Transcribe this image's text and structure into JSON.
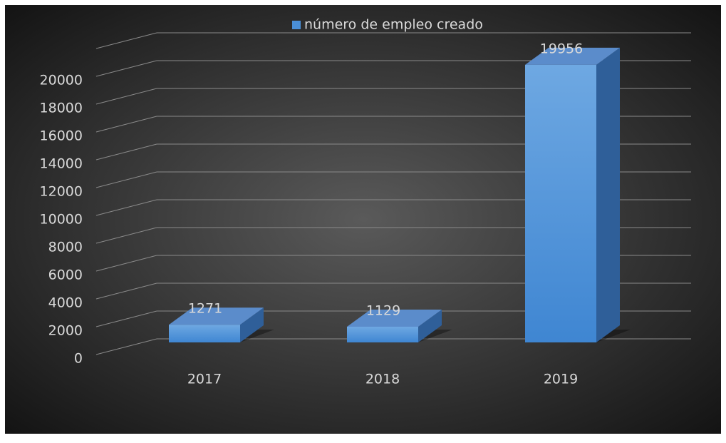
{
  "chart_data": {
    "type": "bar3d",
    "series": [
      {
        "name": "número de empleo creado",
        "color": "#4a8fd8",
        "values": [
          1271,
          1129,
          19956
        ]
      }
    ],
    "categories": [
      "2017",
      "2018",
      "2019"
    ],
    "ylim": [
      0,
      22000
    ],
    "yticks": [
      0,
      2000,
      4000,
      6000,
      8000,
      10000,
      12000,
      14000,
      16000,
      18000,
      20000
    ],
    "grid": true,
    "legend": "top"
  }
}
